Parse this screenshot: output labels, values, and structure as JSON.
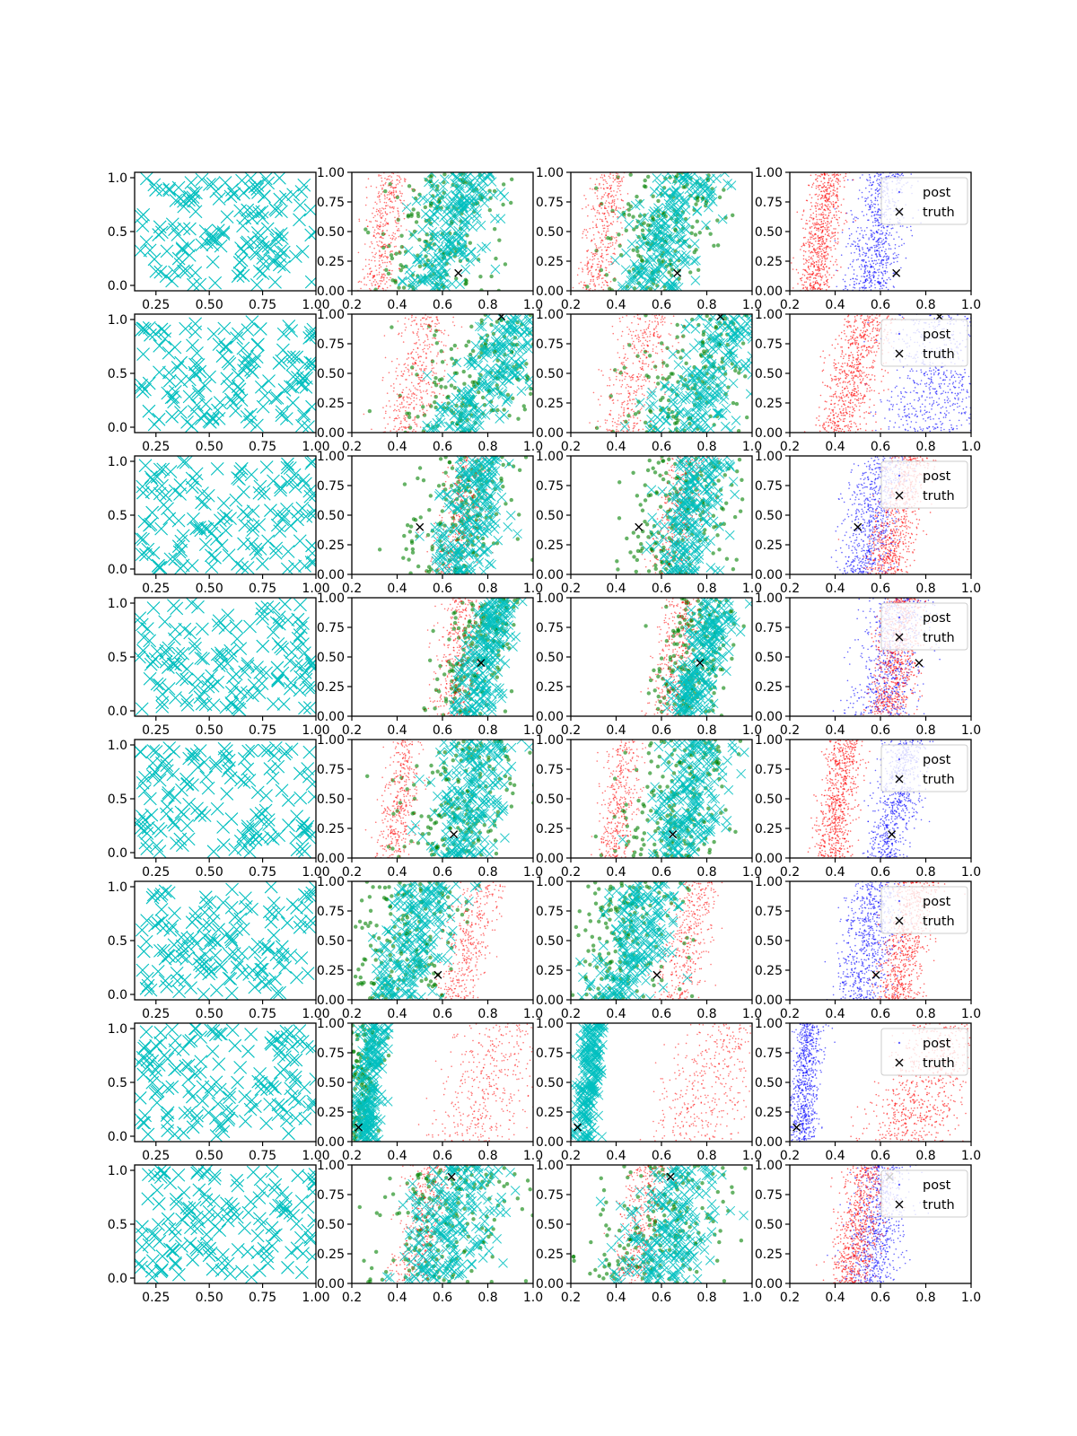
{
  "figure": {
    "rows": 8,
    "cols": 4
  },
  "colors": {
    "cyan": "#00bfbf",
    "green": "#008000",
    "red": "#ff0000",
    "blue": "#0000ff",
    "truth": "#000000",
    "axes": "#000000",
    "background": "#ffffff"
  },
  "legend": {
    "post_label": "post",
    "truth_label": "truth",
    "placement": "upper right"
  },
  "axes": {
    "col0": {
      "xlim": [
        0.15,
        1.0
      ],
      "ylim": [
        -0.05,
        1.05
      ],
      "xticks": [
        0.25,
        0.5,
        0.75,
        1.0
      ],
      "xtick_labels": [
        "0.25",
        "0.50",
        "0.75",
        "1.00"
      ],
      "yticks": [
        0.0,
        0.5,
        1.0
      ],
      "ytick_labels": [
        "0.0",
        "0.5",
        "1.0"
      ]
    },
    "posterior": {
      "xlim": [
        0.2,
        1.0
      ],
      "ylim": [
        0.0,
        1.0
      ],
      "xticks": [
        0.2,
        0.4,
        0.6,
        0.8,
        1.0
      ],
      "xtick_labels": [
        "0.2",
        "0.4",
        "0.6",
        "0.8",
        "1.0"
      ],
      "yticks": [
        0.0,
        0.25,
        0.5,
        0.75,
        1.0
      ],
      "ytick_labels": [
        "0.00",
        "0.25",
        "0.50",
        "0.75",
        "1.00"
      ]
    }
  },
  "chart_data": [
    {
      "row": 1,
      "type": "scatter",
      "truth": [
        0.67,
        0.15
      ],
      "bands": {
        "red": [
          0.3,
          0.38,
          0.04
        ],
        "cyan": [
          0.55,
          0.72,
          0.08
        ],
        "blue": [
          0.55,
          0.62,
          0.06
        ]
      },
      "green_in_col3": true,
      "cyan_in_col3": true
    },
    {
      "row": 2,
      "type": "scatter",
      "truth": [
        0.86,
        0.98
      ],
      "bands": {
        "red": [
          0.42,
          0.55,
          0.06
        ],
        "cyan": [
          0.68,
          0.95,
          0.1
        ],
        "blue": [
          0.82,
          0.9,
          0.12
        ]
      },
      "green_in_col3": true,
      "cyan_in_col3": true
    },
    {
      "row": 3,
      "type": "scatter",
      "truth": [
        0.5,
        0.4
      ],
      "bands": {
        "red": [
          0.62,
          0.74,
          0.05
        ],
        "cyan": [
          0.66,
          0.8,
          0.07
        ],
        "blue": [
          0.52,
          0.62,
          0.06
        ]
      },
      "green_in_col3": true,
      "cyan_in_col3": true
    },
    {
      "row": 4,
      "type": "scatter",
      "truth": [
        0.77,
        0.45
      ],
      "bands": {
        "red": [
          0.64,
          0.7,
          0.05
        ],
        "cyan": [
          0.72,
          0.86,
          0.05
        ],
        "blue": [
          0.6,
          0.68,
          0.07
        ]
      },
      "green_in_col3": true,
      "cyan_in_col3": true
    },
    {
      "row": 5,
      "type": "scatter",
      "truth": [
        0.65,
        0.2
      ],
      "bands": {
        "red": [
          0.38,
          0.45,
          0.04
        ],
        "cyan": [
          0.66,
          0.78,
          0.08
        ],
        "blue": [
          0.62,
          0.72,
          0.05
        ]
      },
      "green_in_col3": true,
      "cyan_in_col3": true
    },
    {
      "row": 6,
      "type": "scatter",
      "truth": [
        0.58,
        0.21
      ],
      "bands": {
        "red": [
          0.66,
          0.77,
          0.05
        ],
        "cyan": [
          0.4,
          0.55,
          0.08
        ],
        "blue": [
          0.5,
          0.6,
          0.06
        ]
      },
      "green_in_col3": true,
      "cyan_in_col3": true
    },
    {
      "row": 7,
      "type": "scatter",
      "truth": [
        0.23,
        0.12
      ],
      "bands": {
        "red": [
          0.72,
          0.9,
          0.1
        ],
        "cyan": [
          0.26,
          0.3,
          0.03
        ],
        "blue": [
          0.25,
          0.29,
          0.03
        ]
      },
      "green_in_col3": false,
      "cyan_in_col3": true
    },
    {
      "row": 8,
      "type": "scatter",
      "truth": [
        0.64,
        0.9
      ],
      "bands": {
        "red": [
          0.46,
          0.55,
          0.05
        ],
        "cyan": [
          0.58,
          0.7,
          0.1
        ],
        "blue": [
          0.55,
          0.63,
          0.06
        ]
      },
      "green_in_col3": true,
      "cyan_in_col3": true
    }
  ]
}
